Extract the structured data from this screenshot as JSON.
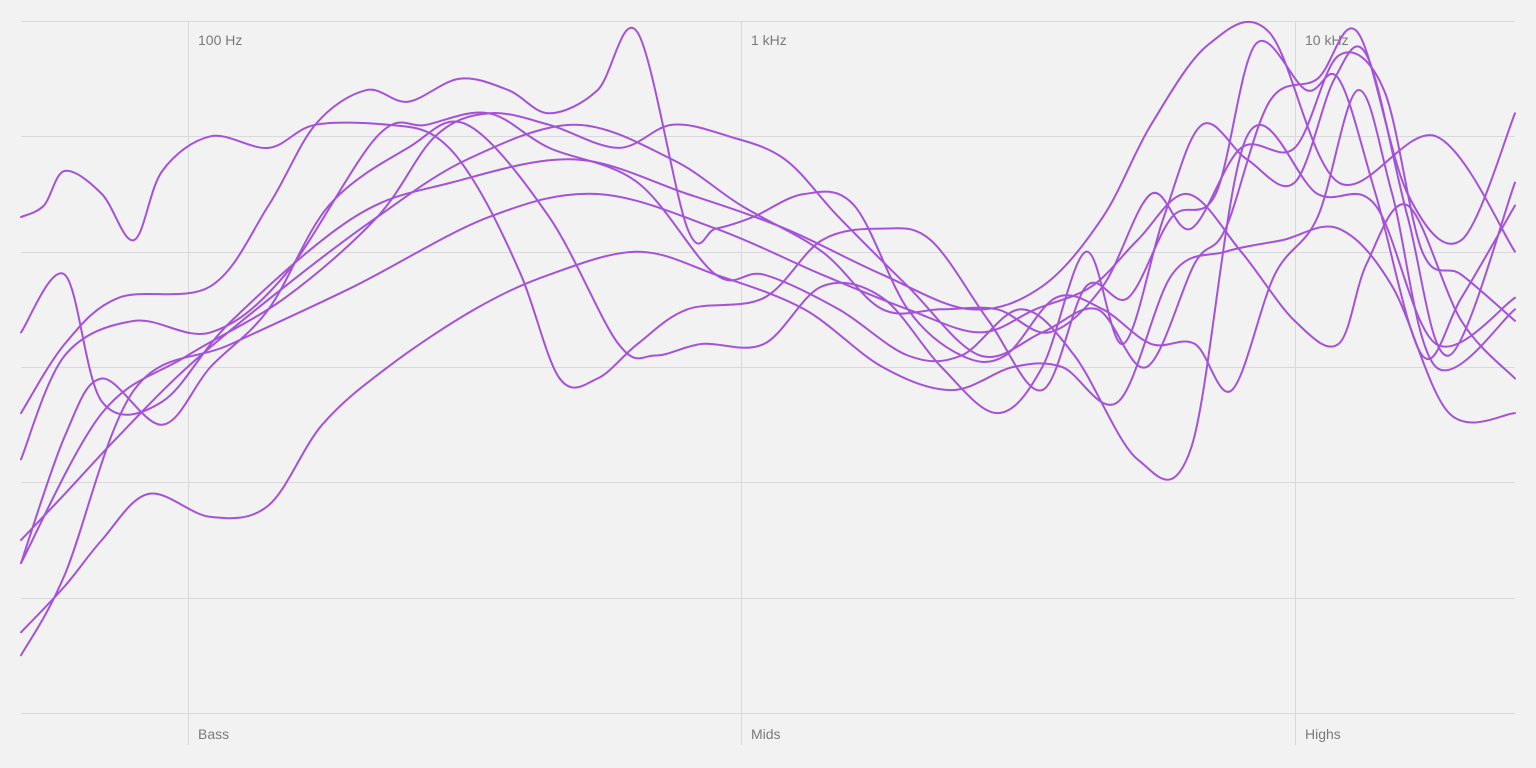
{
  "chart_data": {
    "type": "line",
    "xscale": "log",
    "xlim": [
      50,
      25000
    ],
    "x_ticks": [
      {
        "value": 100,
        "label": "100 Hz"
      },
      {
        "value": 1000,
        "label": "1 kHz"
      },
      {
        "value": 10000,
        "label": "10 kHz"
      }
    ],
    "band_labels": [
      {
        "value": 100,
        "label": "Bass"
      },
      {
        "value": 1000,
        "label": "Mids"
      },
      {
        "value": 10000,
        "label": "Highs"
      }
    ],
    "ylim": [
      -6,
      0
    ],
    "y_gridlines": [
      -6,
      -5,
      -4,
      -3,
      -2,
      -1,
      0
    ],
    "y_tick_labels": false,
    "grid": true,
    "legend": "none",
    "line_color": "#a452d9",
    "series": [
      {
        "points": [
          [
            50,
            -2.7
          ],
          [
            60,
            -2.2
          ],
          [
            70,
            -3.3
          ],
          [
            90,
            -3.3
          ],
          [
            120,
            -2.6
          ],
          [
            200,
            -1.7
          ],
          [
            300,
            -1.4
          ],
          [
            500,
            -1.2
          ],
          [
            800,
            -1.5
          ],
          [
            1200,
            -1.8
          ],
          [
            1800,
            -2.2
          ],
          [
            2600,
            -2.5
          ],
          [
            3500,
            -2.3
          ],
          [
            4500,
            -1.7
          ],
          [
            5500,
            -0.9
          ],
          [
            7000,
            -0.2
          ],
          [
            9000,
            -0.1
          ],
          [
            12000,
            -1.4
          ],
          [
            18000,
            -1.0
          ],
          [
            25000,
            -2.0
          ]
        ]
      },
      {
        "points": [
          [
            50,
            -3.8
          ],
          [
            60,
            -2.9
          ],
          [
            80,
            -2.6
          ],
          [
            110,
            -2.7
          ],
          [
            150,
            -2.2
          ],
          [
            220,
            -1.0
          ],
          [
            270,
            -0.9
          ],
          [
            350,
            -0.8
          ],
          [
            450,
            -1.1
          ],
          [
            650,
            -1.4
          ],
          [
            900,
            -2.2
          ],
          [
            1100,
            -2.2
          ],
          [
            1500,
            -2.5
          ],
          [
            2000,
            -2.9
          ],
          [
            2500,
            -2.9
          ],
          [
            3200,
            -2.5
          ],
          [
            4000,
            -2.9
          ],
          [
            5200,
            -3.8
          ],
          [
            6500,
            -3.7
          ],
          [
            8200,
            -1.0
          ],
          [
            11000,
            -1.5
          ],
          [
            14000,
            -1.6
          ],
          [
            18000,
            -2.8
          ],
          [
            25000,
            -2.4
          ]
        ]
      },
      {
        "points": [
          [
            50,
            -5.5
          ],
          [
            60,
            -4.8
          ],
          [
            80,
            -3.2
          ],
          [
            120,
            -2.8
          ],
          [
            200,
            -2.3
          ],
          [
            350,
            -1.7
          ],
          [
            550,
            -1.5
          ],
          [
            900,
            -1.8
          ],
          [
            1400,
            -2.2
          ],
          [
            2000,
            -2.5
          ],
          [
            2700,
            -2.7
          ],
          [
            3400,
            -2.5
          ],
          [
            4300,
            -2.3
          ],
          [
            5200,
            -1.9
          ],
          [
            6400,
            -1.5
          ],
          [
            8000,
            -2.0
          ],
          [
            10000,
            -2.6
          ],
          [
            12000,
            -2.8
          ],
          [
            13500,
            -2.1
          ],
          [
            16000,
            -1.6
          ],
          [
            20000,
            -2.6
          ],
          [
            25000,
            -3.1
          ]
        ]
      },
      {
        "points": [
          [
            50,
            -5.3
          ],
          [
            60,
            -4.9
          ],
          [
            70,
            -4.5
          ],
          [
            85,
            -4.1
          ],
          [
            110,
            -4.3
          ],
          [
            140,
            -4.2
          ],
          [
            175,
            -3.5
          ],
          [
            230,
            -3.0
          ],
          [
            330,
            -2.5
          ],
          [
            450,
            -2.2
          ],
          [
            650,
            -2.0
          ],
          [
            900,
            -2.2
          ],
          [
            1300,
            -2.5
          ],
          [
            1800,
            -3.0
          ],
          [
            2400,
            -3.2
          ],
          [
            3100,
            -3.0
          ],
          [
            3800,
            -3.0
          ],
          [
            4800,
            -3.3
          ],
          [
            6000,
            -2.2
          ],
          [
            7500,
            -2.0
          ],
          [
            9500,
            -1.9
          ],
          [
            12000,
            -1.8
          ],
          [
            15000,
            -2.3
          ],
          [
            19000,
            -3.4
          ],
          [
            25000,
            -3.4
          ]
        ]
      },
      {
        "points": [
          [
            50,
            -4.7
          ],
          [
            70,
            -3.4
          ],
          [
            100,
            -2.9
          ],
          [
            150,
            -2.4
          ],
          [
            220,
            -1.7
          ],
          [
            280,
            -1.0
          ],
          [
            350,
            -0.8
          ],
          [
            450,
            -0.9
          ],
          [
            600,
            -1.1
          ],
          [
            750,
            -0.9
          ],
          [
            950,
            -1.0
          ],
          [
            1200,
            -1.2
          ],
          [
            1500,
            -1.7
          ],
          [
            2000,
            -2.3
          ],
          [
            2700,
            -2.9
          ],
          [
            3500,
            -2.7
          ],
          [
            4400,
            -2.5
          ],
          [
            5400,
            -3.0
          ],
          [
            6600,
            -2.1
          ],
          [
            7500,
            -1.8
          ],
          [
            9000,
            -0.7
          ],
          [
            11000,
            -0.5
          ],
          [
            13000,
            -0.1
          ],
          [
            16000,
            -1.5
          ],
          [
            20000,
            -1.9
          ],
          [
            25000,
            -0.8
          ]
        ]
      },
      {
        "points": [
          [
            50,
            -4.5
          ],
          [
            60,
            -4.1
          ],
          [
            75,
            -3.6
          ],
          [
            100,
            -3.0
          ],
          [
            150,
            -2.3
          ],
          [
            220,
            -1.7
          ],
          [
            320,
            -1.2
          ],
          [
            500,
            -0.9
          ],
          [
            750,
            -1.2
          ],
          [
            1000,
            -1.6
          ],
          [
            1400,
            -2.0
          ],
          [
            1800,
            -2.5
          ],
          [
            2300,
            -2.5
          ],
          [
            2900,
            -2.5
          ],
          [
            3600,
            -2.7
          ],
          [
            4500,
            -2.3
          ],
          [
            5500,
            -1.5
          ],
          [
            6500,
            -1.8
          ],
          [
            8000,
            -1.1
          ],
          [
            10000,
            -1.1
          ],
          [
            12000,
            -0.3
          ],
          [
            14500,
            -0.6
          ],
          [
            17000,
            -2.0
          ],
          [
            20000,
            -2.2
          ],
          [
            25000,
            -2.6
          ]
        ]
      },
      {
        "points": [
          [
            50,
            -4.7
          ],
          [
            60,
            -3.6
          ],
          [
            70,
            -3.1
          ],
          [
            90,
            -3.5
          ],
          [
            110,
            -3.0
          ],
          [
            140,
            -2.5
          ],
          [
            180,
            -1.6
          ],
          [
            250,
            -1.1
          ],
          [
            320,
            -0.9
          ],
          [
            450,
            -1.7
          ],
          [
            600,
            -2.8
          ],
          [
            700,
            -2.9
          ],
          [
            850,
            -2.8
          ],
          [
            1100,
            -2.8
          ],
          [
            1400,
            -2.3
          ],
          [
            1800,
            -2.4
          ],
          [
            2300,
            -3.0
          ],
          [
            2900,
            -3.4
          ],
          [
            3500,
            -3.0
          ],
          [
            4200,
            -2.0
          ],
          [
            4900,
            -2.8
          ],
          [
            5800,
            -1.7
          ],
          [
            6800,
            -0.9
          ],
          [
            8200,
            -1.2
          ],
          [
            10000,
            -1.4
          ],
          [
            11800,
            -0.5
          ],
          [
            13500,
            -0.3
          ],
          [
            16000,
            -1.7
          ],
          [
            19000,
            -2.9
          ],
          [
            25000,
            -1.4
          ]
        ]
      },
      {
        "points": [
          [
            50,
            -1.7
          ],
          [
            55,
            -1.6
          ],
          [
            60,
            -1.3
          ],
          [
            70,
            -1.5
          ],
          [
            80,
            -1.9
          ],
          [
            90,
            -1.3
          ],
          [
            110,
            -1.0
          ],
          [
            140,
            -1.1
          ],
          [
            170,
            -0.9
          ],
          [
            230,
            -0.9
          ],
          [
            280,
            -1.0
          ],
          [
            330,
            -1.4
          ],
          [
            400,
            -2.2
          ],
          [
            470,
            -3.1
          ],
          [
            550,
            -3.1
          ],
          [
            650,
            -2.8
          ],
          [
            800,
            -2.5
          ],
          [
            1100,
            -2.4
          ],
          [
            1400,
            -1.9
          ],
          [
            1800,
            -1.8
          ],
          [
            2200,
            -1.9
          ],
          [
            2800,
            -2.6
          ],
          [
            3500,
            -3.2
          ],
          [
            4200,
            -2.3
          ],
          [
            5000,
            -2.4
          ],
          [
            6000,
            -1.7
          ],
          [
            7200,
            -1.5
          ],
          [
            8500,
            -0.2
          ],
          [
            10500,
            -0.6
          ],
          [
            12000,
            -0.5
          ],
          [
            14000,
            -1.5
          ],
          [
            17000,
            -2.9
          ],
          [
            20000,
            -2.4
          ],
          [
            25000,
            -1.6
          ]
        ]
      },
      {
        "points": [
          [
            50,
            -3.4
          ],
          [
            60,
            -2.8
          ],
          [
            75,
            -2.4
          ],
          [
            110,
            -2.3
          ],
          [
            140,
            -1.6
          ],
          [
            170,
            -0.9
          ],
          [
            210,
            -0.6
          ],
          [
            250,
            -0.7
          ],
          [
            310,
            -0.5
          ],
          [
            380,
            -0.6
          ],
          [
            450,
            -0.8
          ],
          [
            550,
            -0.6
          ],
          [
            650,
            -0.1
          ],
          [
            800,
            -1.8
          ],
          [
            900,
            -1.8
          ],
          [
            1050,
            -1.7
          ],
          [
            1300,
            -1.5
          ],
          [
            1600,
            -1.6
          ],
          [
            2000,
            -2.5
          ],
          [
            2500,
            -2.9
          ],
          [
            3000,
            -2.9
          ],
          [
            3700,
            -2.4
          ],
          [
            4500,
            -2.5
          ],
          [
            5500,
            -2.8
          ],
          [
            6600,
            -2.8
          ],
          [
            7700,
            -3.2
          ],
          [
            9200,
            -2.2
          ],
          [
            11000,
            -1.7
          ],
          [
            13000,
            -0.6
          ],
          [
            15000,
            -1.5
          ],
          [
            18000,
            -3.0
          ],
          [
            25000,
            -2.5
          ]
        ]
      }
    ]
  }
}
